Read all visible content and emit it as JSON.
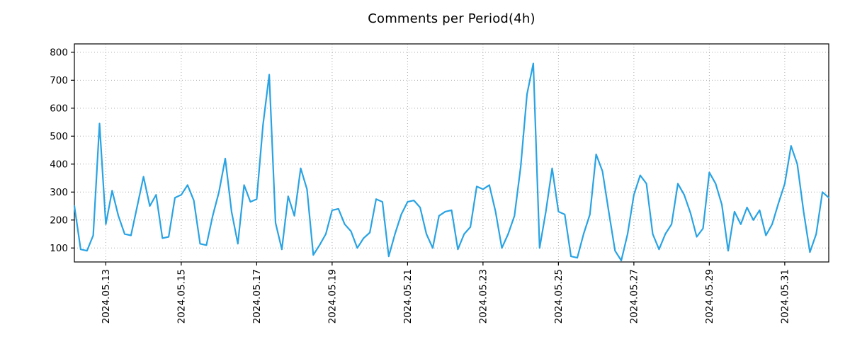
{
  "title": "Comments per Period(4h)",
  "chart_data": {
    "type": "line",
    "title": "Comments per Period(4h)",
    "xlabel": "",
    "ylabel": "",
    "x_start": "2024.05.12 04:00",
    "x_step_hours": 4,
    "x_tick_labels": [
      "2024.05.13",
      "2024.05.15",
      "2024.05.17",
      "2024.05.19",
      "2024.05.21",
      "2024.05.23",
      "2024.05.25",
      "2024.05.27",
      "2024.05.29",
      "2024.05.31"
    ],
    "x_tick_indices": [
      5,
      17,
      29,
      41,
      53,
      65,
      77,
      89,
      101,
      113
    ],
    "values": [
      250,
      95,
      90,
      145,
      545,
      185,
      305,
      215,
      150,
      145,
      250,
      355,
      250,
      290,
      135,
      140,
      280,
      290,
      325,
      270,
      115,
      110,
      215,
      300,
      420,
      230,
      115,
      325,
      265,
      275,
      540,
      720,
      190,
      95,
      285,
      215,
      385,
      310,
      75,
      110,
      150,
      235,
      240,
      185,
      160,
      100,
      135,
      155,
      275,
      265,
      70,
      150,
      220,
      265,
      270,
      245,
      150,
      100,
      215,
      230,
      235,
      95,
      150,
      175,
      320,
      310,
      325,
      230,
      100,
      150,
      215,
      390,
      650,
      760,
      100,
      230,
      385,
      230,
      220,
      70,
      65,
      150,
      220,
      435,
      375,
      230,
      90,
      55,
      150,
      290,
      360,
      330,
      150,
      95,
      150,
      185,
      330,
      290,
      225,
      140,
      170,
      370,
      330,
      255,
      90,
      230,
      185,
      245,
      200,
      235,
      145,
      185,
      260,
      330,
      465,
      400,
      230,
      85,
      150,
      300,
      280
    ],
    "y_ticks": [
      100,
      200,
      300,
      400,
      500,
      600,
      700,
      800
    ],
    "ylim": [
      50,
      830
    ],
    "grid": "dotted",
    "legend": "none",
    "line_color": "#29a3e3",
    "grid_color": "#aaaaaa",
    "axis_color": "#000000",
    "background": "#ffffff"
  }
}
